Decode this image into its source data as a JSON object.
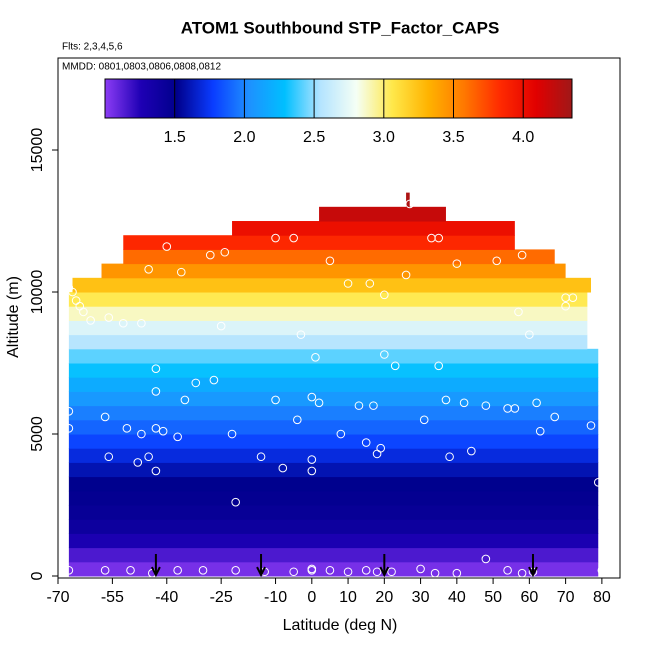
{
  "chart_data": {
    "type": "heatmap",
    "title": "ATOM1 Southbound STP_Factor_CAPS",
    "subtitle": "Flts: 2,3,4,5,6",
    "annotation": "MMDD: 0801,0803,0806,0808,0812",
    "x_label": "Latitude (deg N)",
    "y_label": "Altitude (m)",
    "xlim": [
      -70,
      85
    ],
    "ylim": [
      -70,
      18240
    ],
    "xticks": [
      -70,
      -55,
      -40,
      -25,
      -10,
      0,
      10,
      20,
      30,
      40,
      50,
      60,
      70,
      80
    ],
    "yticks": [
      0,
      5000,
      10000,
      15000
    ],
    "clim": [
      1.0,
      4.35
    ],
    "cticks": [
      1.5,
      {
        "value": 2,
        "label": "2.0"
      },
      2.5,
      {
        "value": 3,
        "label": "3.0"
      },
      3.5,
      {
        "value": 4,
        "label": "4.0"
      }
    ],
    "colormap": [
      "#8c3cf5",
      "#1e00b4",
      "#00008c",
      "#0a3cff",
      "#1e90ff",
      "#00bfff",
      "#b4e4ff",
      "#f5fff5",
      "#ffe84a",
      "#ffb300",
      "#ff7800",
      "#ff2a00",
      "#e10000",
      "#a01818"
    ],
    "cells": [
      {
        "alt": [
          0,
          500
        ],
        "lat": [
          -67,
          79
        ],
        "value": 1.05
      },
      {
        "alt": [
          500,
          1000
        ],
        "lat": [
          -67,
          79
        ],
        "value": 1.15
      },
      {
        "alt": [
          1000,
          1500
        ],
        "lat": [
          -67,
          79
        ],
        "value": 1.28
      },
      {
        "alt": [
          1500,
          2000
        ],
        "lat": [
          -67,
          79
        ],
        "value": 1.4
      },
      {
        "alt": [
          2000,
          2500
        ],
        "lat": [
          -67,
          79
        ],
        "value": 1.45
      },
      {
        "alt": [
          2500,
          3000
        ],
        "lat": [
          -67,
          79
        ],
        "value": 1.48
      },
      {
        "alt": [
          3000,
          3500
        ],
        "lat": [
          -67,
          79
        ],
        "value": 1.52
      },
      {
        "alt": [
          3500,
          4000
        ],
        "lat": [
          -67,
          79
        ],
        "value": 1.6
      },
      {
        "alt": [
          4000,
          4500
        ],
        "lat": [
          -67,
          79
        ],
        "value": 1.7
      },
      {
        "alt": [
          4500,
          5000
        ],
        "lat": [
          -67,
          79
        ],
        "value": 1.8
      },
      {
        "alt": [
          5000,
          5500
        ],
        "lat": [
          -67,
          79
        ],
        "value": 1.9
      },
      {
        "alt": [
          5500,
          6000
        ],
        "lat": [
          -67,
          79
        ],
        "value": 1.98
      },
      {
        "alt": [
          6000,
          6500
        ],
        "lat": [
          -67,
          79
        ],
        "value": 2.08
      },
      {
        "alt": [
          6500,
          7000
        ],
        "lat": [
          -67,
          79
        ],
        "value": 2.18
      },
      {
        "alt": [
          7000,
          7500
        ],
        "lat": [
          -67,
          79
        ],
        "value": 2.3
      },
      {
        "alt": [
          7500,
          8000
        ],
        "lat": [
          -67,
          79
        ],
        "value": 2.42
      },
      {
        "alt": [
          8000,
          8500
        ],
        "lat": [
          -67,
          76
        ],
        "value": 2.56
      },
      {
        "alt": [
          8500,
          9000
        ],
        "lat": [
          -67,
          76
        ],
        "value": 2.7
      },
      {
        "alt": [
          9000,
          9500
        ],
        "lat": [
          -67,
          76
        ],
        "value": 2.88
      },
      {
        "alt": [
          9500,
          10000
        ],
        "lat": [
          -67,
          76
        ],
        "value": 3.05
      },
      {
        "alt": [
          10000,
          10500
        ],
        "lat": [
          -66,
          77
        ],
        "value": 3.25
      },
      {
        "alt": [
          10500,
          11000
        ],
        "lat": [
          -58,
          70
        ],
        "value": 3.45
      },
      {
        "alt": [
          11000,
          11500
        ],
        "lat": [
          -52,
          67
        ],
        "value": 3.62
      },
      {
        "alt": [
          11500,
          12000
        ],
        "lat": [
          -52,
          56
        ],
        "value": 3.85
      },
      {
        "alt": [
          12000,
          12500
        ],
        "lat": [
          -22,
          56
        ],
        "value": 4.0
      },
      {
        "alt": [
          12500,
          13000
        ],
        "lat": [
          2,
          37
        ],
        "value": 4.2
      },
      {
        "alt": [
          13000,
          13500
        ],
        "lat": [
          26,
          27
        ],
        "value": 4.3
      }
    ],
    "points": {
      "x": [
        -67,
        -66,
        -65,
        -64,
        -63,
        -61,
        -56,
        -52,
        -47,
        -67,
        -67,
        -57,
        -56,
        -51,
        -48,
        -47,
        -45,
        -43,
        -41,
        -43,
        -43,
        -43,
        -35,
        -37,
        -32,
        -27,
        -25,
        -22,
        -21,
        -14,
        -10,
        -8,
        -4,
        -3,
        0,
        0,
        0,
        1,
        2,
        5,
        8,
        10,
        13,
        15,
        16,
        17,
        18,
        19,
        20,
        20,
        23,
        26,
        31,
        35,
        35,
        37,
        38,
        40,
        42,
        44,
        48,
        51,
        54,
        56,
        57,
        60,
        62,
        63,
        67,
        70,
        70,
        72,
        77,
        79,
        -45,
        -36,
        -28,
        -24,
        -10,
        -5,
        -40,
        27,
        33,
        58,
        -67,
        -57,
        -50,
        -44,
        -37,
        -30,
        -21,
        -13,
        -5,
        0,
        0,
        5,
        10,
        15,
        18,
        22,
        30,
        34,
        40,
        48,
        54,
        58,
        80,
        61
      ],
      "y": [
        10150,
        10000,
        9700,
        9500,
        9300,
        9000,
        9100,
        8900,
        8900,
        5800,
        5200,
        5600,
        4200,
        5200,
        4000,
        5000,
        4200,
        5200,
        5100,
        3700,
        6500,
        7300,
        6200,
        4900,
        6800,
        6900,
        8800,
        5000,
        2600,
        4200,
        6200,
        3800,
        5500,
        8500,
        6300,
        4100,
        3700,
        7700,
        6100,
        11100,
        5000,
        10300,
        6000,
        4700,
        10300,
        6000,
        4300,
        4500,
        9900,
        7800,
        7400,
        10600,
        5500,
        11900,
        7400,
        6200,
        4200,
        11000,
        6100,
        4400,
        6000,
        11100,
        5900,
        5900,
        9300,
        8500,
        6100,
        5100,
        5600,
        9500,
        9800,
        9800,
        5300,
        3300,
        10800,
        10700,
        11300,
        11400,
        11900,
        11900,
        11600,
        13100,
        11900,
        11300,
        200,
        200,
        200,
        100,
        200,
        200,
        200,
        150,
        150,
        200,
        250,
        200,
        150,
        200,
        150,
        150,
        250,
        100,
        100,
        600,
        200,
        100,
        200,
        150
      ]
    },
    "arrows": [
      -43,
      -14,
      20,
      61
    ]
  }
}
